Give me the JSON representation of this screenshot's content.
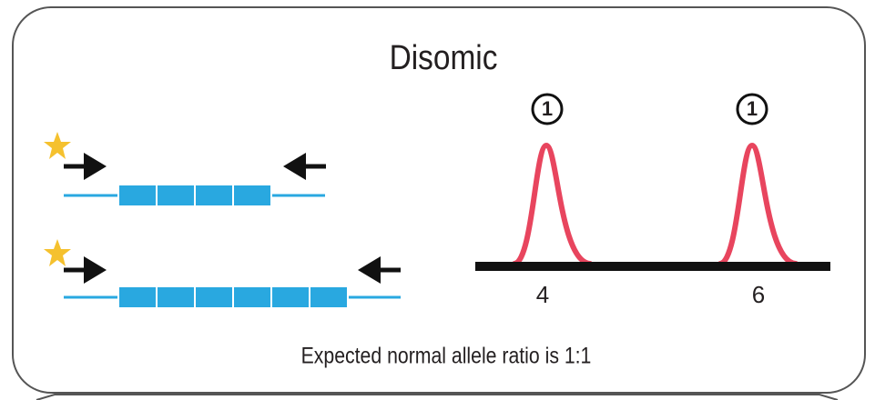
{
  "title": "Disomic",
  "peaks": [
    {
      "label": "4",
      "circle": "1"
    },
    {
      "label": "6",
      "circle": "1"
    }
  ],
  "caption": "Expected normal allele ratio is 1:1"
}
